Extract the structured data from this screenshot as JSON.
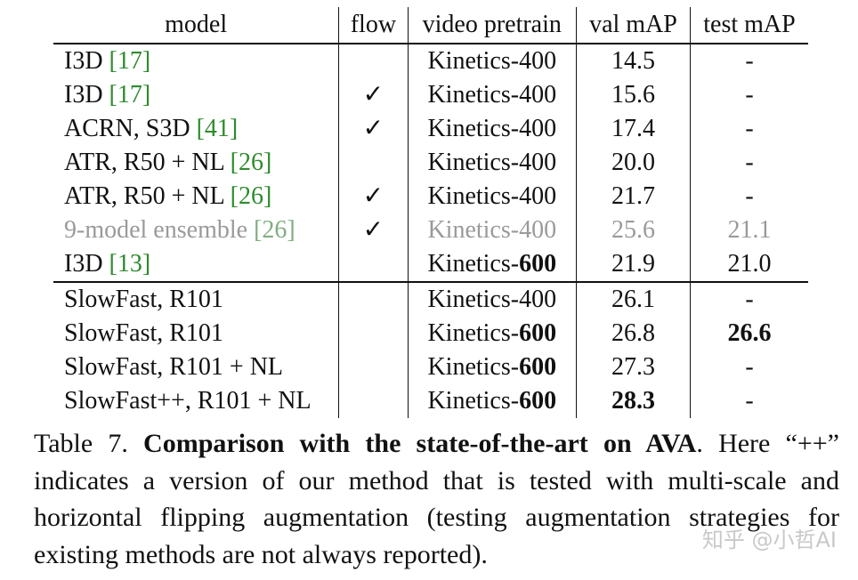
{
  "table": {
    "headers": [
      "model",
      "flow",
      "video pretrain",
      "val mAP",
      "test mAP"
    ],
    "rows": [
      {
        "model": "I3D",
        "cite": "17",
        "flow": "",
        "pretrain_base": "Kinetics-",
        "pretrain_num": "400",
        "val": "14.5",
        "test": "-"
      },
      {
        "model": "I3D",
        "cite": "17",
        "flow": "✓",
        "pretrain_base": "Kinetics-",
        "pretrain_num": "400",
        "val": "15.6",
        "test": "-"
      },
      {
        "model": "ACRN, S3D",
        "cite": "41",
        "flow": "✓",
        "pretrain_base": "Kinetics-",
        "pretrain_num": "400",
        "val": "17.4",
        "test": "-"
      },
      {
        "model": "ATR, R50 + NL",
        "cite": "26",
        "flow": "",
        "pretrain_base": "Kinetics-",
        "pretrain_num": "400",
        "val": "20.0",
        "test": "-"
      },
      {
        "model": "ATR, R50 + NL",
        "cite": "26",
        "flow": "✓",
        "pretrain_base": "Kinetics-",
        "pretrain_num": "400",
        "val": "21.7",
        "test": "-"
      },
      {
        "model": "9-model ensemble",
        "cite": "26",
        "flow": "✓",
        "pretrain_base": "Kinetics-",
        "pretrain_num": "400",
        "val": "25.6",
        "test": "21.1"
      },
      {
        "model": "I3D",
        "cite": "13",
        "flow": "",
        "pretrain_base": "Kinetics-",
        "pretrain_num": "600",
        "val": "21.9",
        "test": "21.0"
      },
      {
        "model": "SlowFast, R101",
        "flow": "",
        "pretrain_base": "Kinetics-",
        "pretrain_num": "400",
        "val": "26.1",
        "test": "-"
      },
      {
        "model": "SlowFast, R101",
        "flow": "",
        "pretrain_base": "Kinetics-",
        "pretrain_num": "600",
        "val": "26.8",
        "test": "26.6"
      },
      {
        "model": "SlowFast, R101 + NL",
        "flow": "",
        "pretrain_base": "Kinetics-",
        "pretrain_num": "600",
        "val": "27.3",
        "test": "-"
      },
      {
        "model": "SlowFast++, R101 + NL",
        "flow": "",
        "pretrain_base": "Kinetics-",
        "pretrain_num": "600",
        "val": "28.3",
        "test": "-"
      }
    ]
  },
  "caption": {
    "label": "Table 7.",
    "bold_title": "Comparison with the state-of-the-art on AVA",
    "body": ". Here “++” indicates a version of our method that is tested with multi-scale and horizontal flipping augmentation (testing augmentation strategies for existing methods are not always reported)."
  },
  "watermark": "知乎 @小哲AI"
}
